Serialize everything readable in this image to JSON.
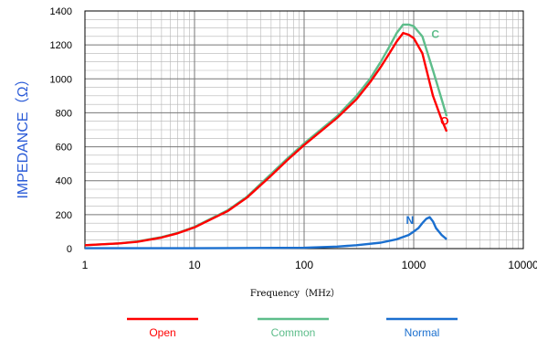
{
  "chart_data": {
    "type": "line",
    "title": "",
    "xlabel": "Frequency（MHz）",
    "ylabel": "IMPEDANCE（Ω）",
    "xscale": "log",
    "xlim": [
      1,
      10000
    ],
    "ylim": [
      0,
      1400
    ],
    "xticks": [
      1,
      10,
      100,
      1000,
      10000
    ],
    "xtick_labels": [
      "1",
      "10",
      "100",
      "1000",
      "10000"
    ],
    "yticks": [
      0,
      200,
      400,
      600,
      800,
      1000,
      1200,
      1400
    ],
    "ytick_labels": [
      "0",
      "200",
      "400",
      "600",
      "800",
      "1000",
      "1200",
      "1400"
    ],
    "grid": true,
    "legend_position": "bottom",
    "series": [
      {
        "name": "Open",
        "tag": "O",
        "color": "#ff0000",
        "x": [
          1,
          2,
          3,
          5,
          7,
          10,
          20,
          30,
          50,
          70,
          100,
          200,
          300,
          400,
          500,
          600,
          700,
          800,
          900,
          1000,
          1200,
          1500,
          1800,
          2000
        ],
        "y": [
          20,
          30,
          40,
          65,
          90,
          125,
          220,
          300,
          430,
          520,
          610,
          770,
          880,
          980,
          1070,
          1150,
          1220,
          1270,
          1260,
          1240,
          1150,
          900,
          760,
          690
        ]
      },
      {
        "name": "Common",
        "tag": "C",
        "color": "#5dbd8a",
        "x": [
          1,
          2,
          3,
          5,
          7,
          10,
          20,
          30,
          50,
          70,
          100,
          200,
          300,
          400,
          500,
          600,
          700,
          800,
          900,
          1000,
          1200,
          1500,
          1800,
          2000
        ],
        "y": [
          20,
          30,
          42,
          68,
          92,
          128,
          225,
          305,
          440,
          530,
          620,
          780,
          900,
          1000,
          1100,
          1190,
          1270,
          1320,
          1320,
          1310,
          1250,
          1050,
          880,
          780
        ]
      },
      {
        "name": "Normal",
        "tag": "N",
        "color": "#1a6fcf",
        "x": [
          1,
          10,
          100,
          200,
          300,
          500,
          700,
          900,
          1000,
          1100,
          1200,
          1300,
          1400,
          1500,
          1600,
          1800,
          2000
        ],
        "y": [
          2,
          2,
          5,
          12,
          20,
          35,
          55,
          80,
          100,
          120,
          150,
          175,
          185,
          160,
          120,
          80,
          55
        ]
      }
    ]
  }
}
